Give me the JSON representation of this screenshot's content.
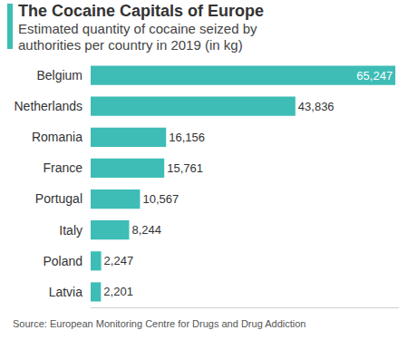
{
  "chart_data": {
    "type": "bar",
    "orientation": "horizontal",
    "title": "The Cocaine Capitals of Europe",
    "subtitle": "Estimated quantity of cocaine seized by authorities per country in 2019 (in kg)",
    "source": "Source: European Monitoring Centre for Drugs and Drug Addiction",
    "categories": [
      "Belgium",
      "Netherlands",
      "Romania",
      "France",
      "Portugal",
      "Italy",
      "Poland",
      "Latvia"
    ],
    "values": [
      65247,
      43836,
      16156,
      15761,
      10567,
      8244,
      2247,
      2201
    ],
    "value_labels": [
      "65,247",
      "43,836",
      "16,156",
      "15,761",
      "10,567",
      "8,244",
      "2,247",
      "2,201"
    ],
    "data_labels": true,
    "color": "#3dbdb6",
    "xlim": [
      0,
      66000
    ],
    "xticks": [],
    "tick_labels": "y",
    "grid": false
  }
}
